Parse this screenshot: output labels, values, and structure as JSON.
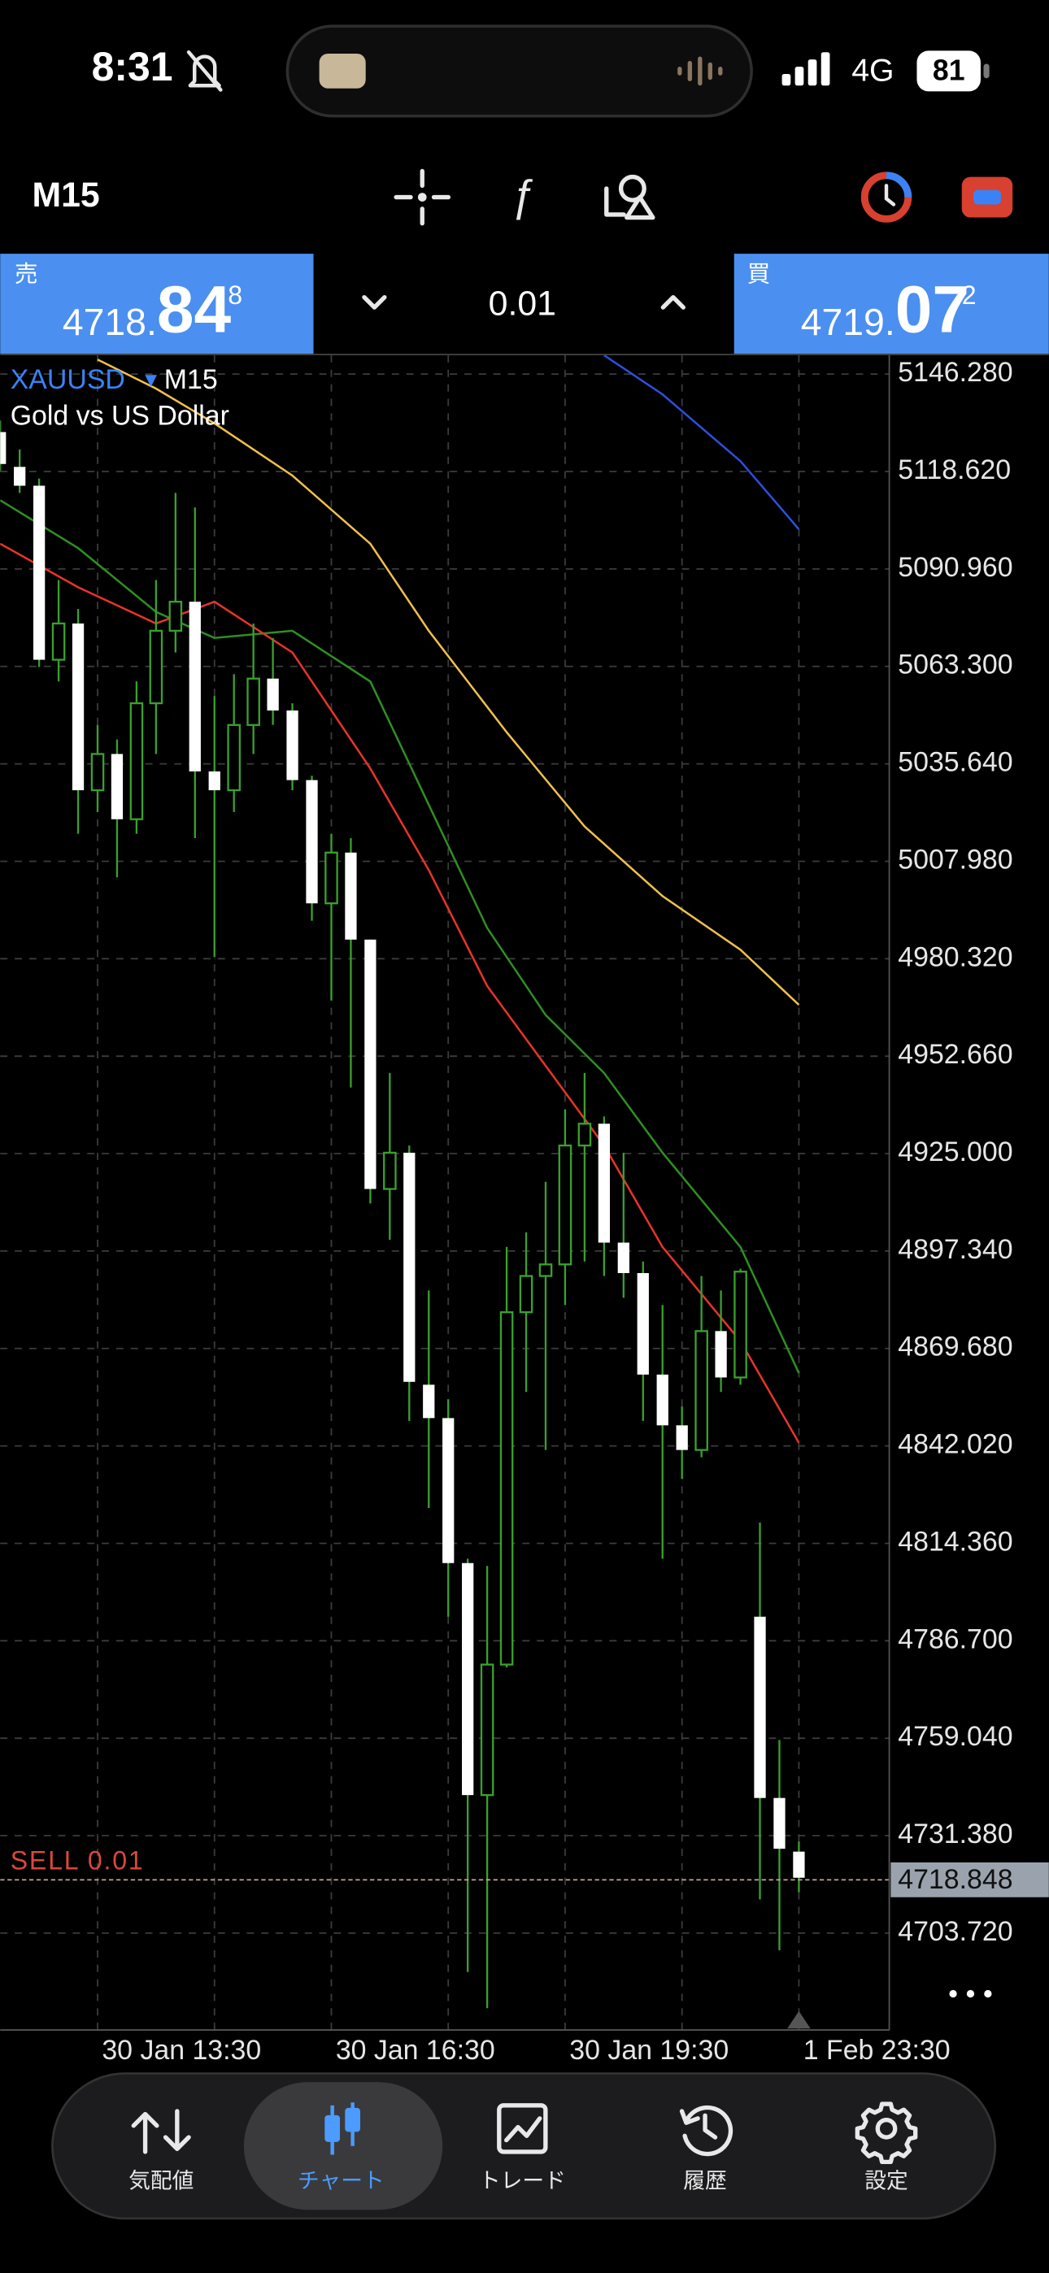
{
  "status_bar": {
    "time": "8:31",
    "network": "4G",
    "battery": "81"
  },
  "toolbar": {
    "timeframe": "M15"
  },
  "trade_panel": {
    "sell": {
      "label": "売",
      "price_main": "4718.",
      "price_big": "84",
      "price_small": "8"
    },
    "volume": "0.01",
    "buy": {
      "label": "買",
      "price_main": "4719.",
      "price_big": "07",
      "price_small": "2"
    }
  },
  "chart_data": {
    "type": "candlestick",
    "symbol": "XAUUSD",
    "timeframe": "M15",
    "subtitle": "Gold vs US Dollar",
    "candles": {
      "open": [
        5129.82,
        5119.94,
        5114.59,
        5065.19,
        5075.48,
        5028.15,
        5038.44,
        5019.92,
        5052.84,
        5073.42,
        5081.66,
        5033.5,
        5028.15,
        5046.67,
        5059.84,
        5050.79,
        5031.03,
        4996.04,
        5010.45,
        4985.75,
        4914.96,
        4925.25,
        4859.39,
        4849.92,
        4808.76,
        4742.9,
        4779.95,
        4879.97,
        4890.26,
        4893.55,
        4927.3,
        4933.48,
        4899.73,
        4891.08,
        4862.27,
        4847.86,
        4840.87,
        4874.62,
        4861.45,
        4793.53,
        4742.08,
        4726.85
      ],
      "high": [
        5133.11,
        5124.88,
        5116.64,
        5087.83,
        5079.6,
        5046.67,
        5042.55,
        5059.02,
        5087.83,
        5112.53,
        5108.41,
        5054.9,
        5061.08,
        5075.48,
        5071.37,
        5052.84,
        5032.26,
        5015.8,
        5014.56,
        4985.75,
        4947.88,
        4927.3,
        4886.14,
        4855.27,
        4809.99,
        4807.94,
        4898.49,
        4902.61,
        4917.01,
        4937.59,
        4947.88,
        4935.54,
        4925.25,
        4894.37,
        4882.03,
        4853.21,
        4890.26,
        4886.14,
        4892.32,
        4820.28,
        4758.54,
        4729.73
      ],
      "low": [
        5118.7,
        5112.53,
        5063.13,
        5059.02,
        5015.8,
        5021.97,
        5003.45,
        5015.8,
        5038.44,
        5067.25,
        5014.56,
        4980.81,
        5021.97,
        5038.44,
        5046.67,
        5028.15,
        4991.1,
        4968.46,
        4943.77,
        4910.84,
        4900.55,
        4849.1,
        4824.4,
        4793.53,
        4692.69,
        4682.4,
        4779.12,
        4857.33,
        4840.87,
        4882.03,
        4894.37,
        4890.26,
        4884.08,
        4849.1,
        4809.99,
        4832.63,
        4838.81,
        4857.33,
        4859.39,
        4713.27,
        4698.86,
        4715.32
      ],
      "close": [
        5120.76,
        5114.59,
        5065.19,
        5075.48,
        5028.15,
        5038.44,
        5019.92,
        5052.84,
        5073.42,
        5081.66,
        5033.5,
        5028.15,
        5046.67,
        5059.84,
        5050.79,
        5031.03,
        4996.04,
        5010.45,
        4985.75,
        4914.96,
        4925.25,
        4860.21,
        4849.92,
        4808.76,
        4742.9,
        4779.95,
        4879.97,
        4890.26,
        4893.55,
        4927.3,
        4933.48,
        4899.73,
        4891.08,
        4862.27,
        4847.86,
        4840.87,
        4874.62,
        4861.45,
        4891.49,
        4742.08,
        4727.67,
        4719.44
      ]
    },
    "bull_color": "#3aa02e",
    "bear_color": "#ffffff",
    "wick_color": "#3aa02e",
    "moving_averages": [
      {
        "color": "#f2c04a",
        "x": [
          5,
          8,
          11,
          15,
          19,
          22,
          26,
          30,
          34,
          38,
          41
        ],
        "values": [
          5150.4,
          5142.16,
          5132.29,
          5117.47,
          5098.12,
          5073.42,
          5044.61,
          5017.86,
          4998.1,
          4982.87,
          4967.23
        ]
      },
      {
        "color": "#2f8f23",
        "x": [
          0,
          4,
          8,
          11,
          15,
          19,
          22,
          25,
          28,
          31,
          34,
          38,
          41
        ],
        "values": [
          5110.47,
          5096.89,
          5078.78,
          5071.37,
          5073.42,
          5059.02,
          5024.03,
          4989.04,
          4964.35,
          4947.88,
          4925.25,
          4898.49,
          4862.68
        ]
      },
      {
        "color": "#e8342a",
        "x": [
          0,
          4,
          8,
          11,
          15,
          19,
          22,
          25,
          28,
          31,
          34,
          38,
          41
        ],
        "values": [
          5098.12,
          5085.77,
          5075.48,
          5081.66,
          5067.25,
          5034.32,
          5005.51,
          4972.58,
          4949.94,
          4927.3,
          4898.49,
          4871.74,
          4842.92
        ]
      },
      {
        "color": "#2e4fe0",
        "x": [
          31,
          34,
          38,
          41
        ],
        "values": [
          5151.63,
          5140.52,
          5121.58,
          5102.24
        ]
      }
    ],
    "xlim": [
      0,
      45.64
    ],
    "ylim": [
      4676.22,
      5151.63
    ],
    "xticks": [
      {
        "value": 5,
        "label": "30 Jan 13:30"
      },
      {
        "value": 11,
        "label": null
      },
      {
        "value": 17,
        "label": "30 Jan 16:30"
      },
      {
        "value": 23,
        "label": null
      },
      {
        "value": 29,
        "label": "30 Jan 19:30"
      },
      {
        "value": 35,
        "label": null
      },
      {
        "value": 41,
        "label": "1 Feb 23:30"
      }
    ],
    "yticks": [
      {
        "value": 5146.28,
        "label": "5146.280"
      },
      {
        "value": 5118.62,
        "label": "5118.620"
      },
      {
        "value": 5090.96,
        "label": "5090.960"
      },
      {
        "value": 5063.3,
        "label": "5063.300"
      },
      {
        "value": 5035.64,
        "label": "5035.640"
      },
      {
        "value": 5007.98,
        "label": "5007.980"
      },
      {
        "value": 4980.32,
        "label": "4980.320"
      },
      {
        "value": 4952.66,
        "label": "4952.660"
      },
      {
        "value": 4925,
        "label": "4925.000"
      },
      {
        "value": 4897.34,
        "label": "4897.340"
      },
      {
        "value": 4869.68,
        "label": "4869.680"
      },
      {
        "value": 4842.02,
        "label": "4842.020"
      },
      {
        "value": 4814.36,
        "label": "4814.360"
      },
      {
        "value": 4786.7,
        "label": "4786.700"
      },
      {
        "value": 4759.04,
        "label": "4759.040"
      },
      {
        "value": 4731.38,
        "label": "4731.380"
      },
      {
        "value": 4703.72,
        "label": "4703.720"
      }
    ],
    "current_price": {
      "value": 4718.848,
      "label": "4718.848"
    },
    "order_label": "SELL 0.01",
    "grid": true
  },
  "nav": {
    "active": 1,
    "items": [
      {
        "label": "気配値"
      },
      {
        "label": "チャート"
      },
      {
        "label": "トレード"
      },
      {
        "label": "履歴"
      },
      {
        "label": "設定"
      }
    ]
  }
}
